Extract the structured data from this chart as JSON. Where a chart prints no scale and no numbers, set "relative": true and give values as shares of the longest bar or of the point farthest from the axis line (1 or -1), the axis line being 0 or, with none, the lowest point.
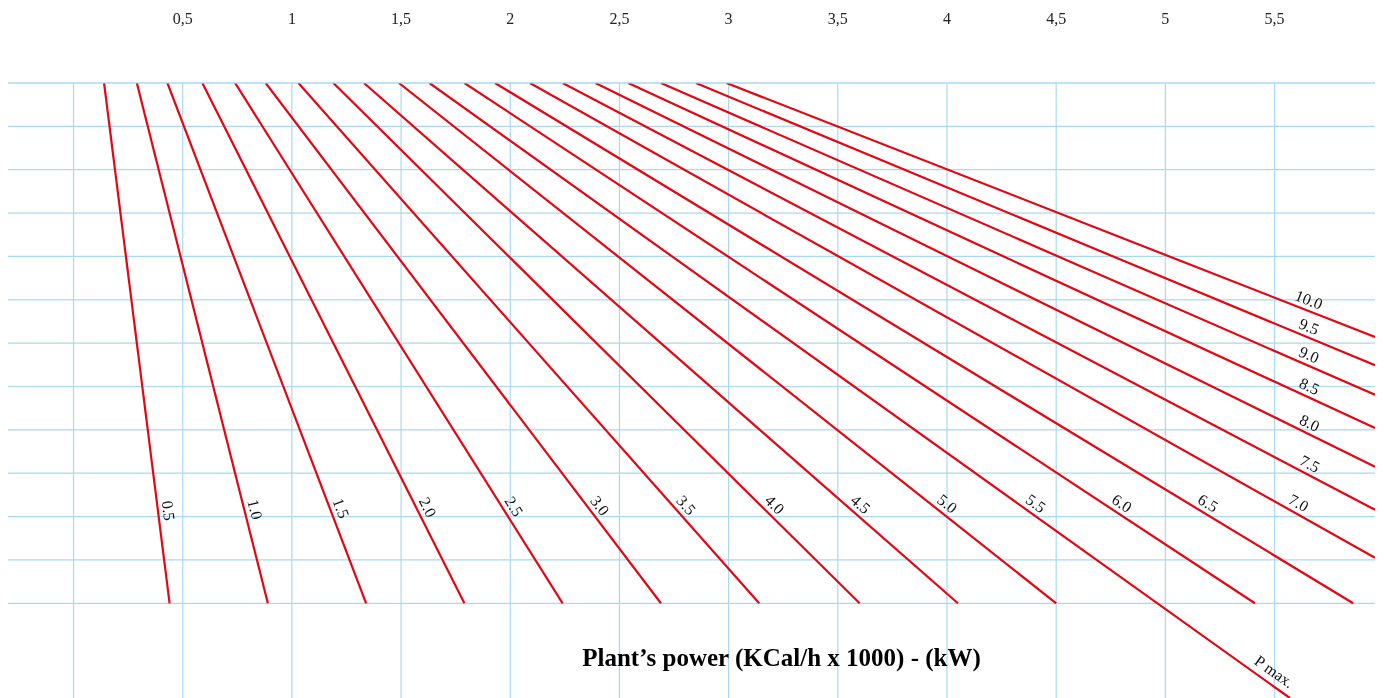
{
  "chart_data": {
    "type": "line",
    "xlabel": "Plant’s power (KCal/h x 1000) - (kW)",
    "relative": true,
    "xlim": [
      -0.3,
      5.96
    ],
    "xticks": [
      {
        "value": 0,
        "label": null
      },
      {
        "value": 0.5,
        "label": "0,5"
      },
      1,
      {
        "value": 1.5,
        "label": "1,5"
      },
      2,
      {
        "value": 2.5,
        "label": "2,5"
      },
      3,
      {
        "value": 3.5,
        "label": "3,5"
      },
      4,
      {
        "value": 4.5,
        "label": "4,5"
      },
      5,
      {
        "value": 5.5,
        "label": "5,5"
      }
    ],
    "grid": true,
    "marker": "none",
    "line_style": "solid",
    "annotations": [
      {
        "text": "P max.",
        "x": 5.57,
        "y": 0
      }
    ],
    "series": [
      {
        "name": "0.5",
        "color": "#e30613",
        "x": [
          0.14,
          0.44
        ],
        "values": [
          1,
          0.154
        ]
      },
      {
        "name": "1.0",
        "color": "#e30613",
        "x": [
          0.29,
          0.89
        ],
        "values": [
          1,
          0.154
        ]
      },
      {
        "name": "1.5",
        "color": "#e30613",
        "x": [
          0.43,
          1.34
        ],
        "values": [
          1,
          0.154
        ]
      },
      {
        "name": "2.0",
        "color": "#e30613",
        "x": [
          0.59,
          1.79
        ],
        "values": [
          1,
          0.154
        ]
      },
      {
        "name": "2.5",
        "color": "#e30613",
        "x": [
          0.74,
          2.24
        ],
        "values": [
          1,
          0.154
        ]
      },
      {
        "name": "3.0",
        "color": "#e30613",
        "x": [
          0.88,
          2.69
        ],
        "values": [
          1,
          0.154
        ]
      },
      {
        "name": "3.5",
        "color": "#e30613",
        "x": [
          1.03,
          3.14
        ],
        "values": [
          1,
          0.154
        ]
      },
      {
        "name": "4.0",
        "color": "#e30613",
        "x": [
          1.19,
          3.6
        ],
        "values": [
          1,
          0.154
        ]
      },
      {
        "name": "4.5",
        "color": "#e30613",
        "x": [
          1.33,
          4.05
        ],
        "values": [
          1,
          0.154
        ]
      },
      {
        "name": "5.0",
        "color": "#e30613",
        "x": [
          1.49,
          4.5
        ],
        "values": [
          1,
          0.154
        ]
      },
      {
        "name": "5.5",
        "color": "#e30613",
        "x": [
          1.63,
          5.57
        ],
        "values": [
          1,
          0
        ]
      },
      {
        "name": "6.0",
        "color": "#e30613",
        "x": [
          1.79,
          5.41
        ],
        "values": [
          1,
          0.154
        ]
      },
      {
        "name": "6.5",
        "color": "#e30613",
        "x": [
          1.93,
          5.86
        ],
        "values": [
          1,
          0.154
        ]
      },
      {
        "name": "7.0",
        "color": "#e30613",
        "x": [
          2.09,
          5.96
        ],
        "values": [
          1,
          0.228
        ]
      },
      {
        "name": "7.5",
        "color": "#e30613",
        "x": [
          2.24,
          5.96
        ],
        "values": [
          1,
          0.306
        ]
      },
      {
        "name": "8.0",
        "color": "#e30613",
        "x": [
          2.39,
          5.96
        ],
        "values": [
          1,
          0.376
        ]
      },
      {
        "name": "8.5",
        "color": "#e30613",
        "x": [
          2.54,
          5.96
        ],
        "values": [
          1,
          0.439
        ]
      },
      {
        "name": "9.0",
        "color": "#e30613",
        "x": [
          2.69,
          5.96
        ],
        "values": [
          1,
          0.493
        ]
      },
      {
        "name": "9.5",
        "color": "#e30613",
        "x": [
          2.85,
          5.96
        ],
        "values": [
          1,
          0.541
        ]
      },
      {
        "name": "10.0",
        "color": "#e30613",
        "x": [
          2.99,
          5.96
        ],
        "values": [
          1,
          0.587
        ]
      }
    ]
  }
}
